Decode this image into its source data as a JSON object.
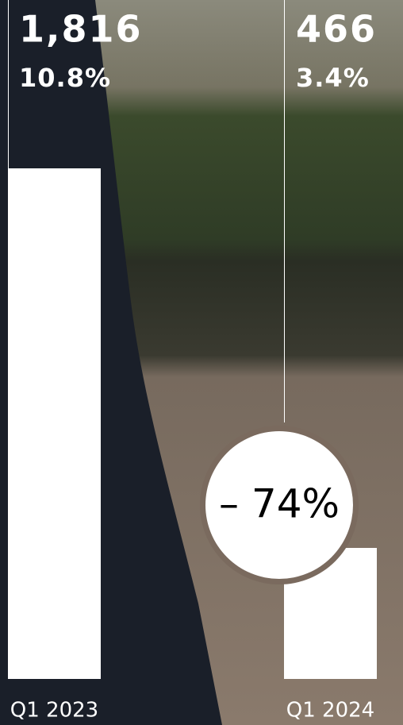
{
  "chart_data": {
    "type": "bar",
    "categories": [
      "Q1 2023",
      "Q1 2024"
    ],
    "values": [
      1816,
      466
    ],
    "value_labels": [
      "1,816",
      "466"
    ],
    "color": "#ffffff",
    "shares": {
      "values": [
        10.8,
        3.4
      ],
      "value_labels": [
        "10.8%",
        "3.4%"
      ]
    },
    "annotation": "– 74%"
  }
}
